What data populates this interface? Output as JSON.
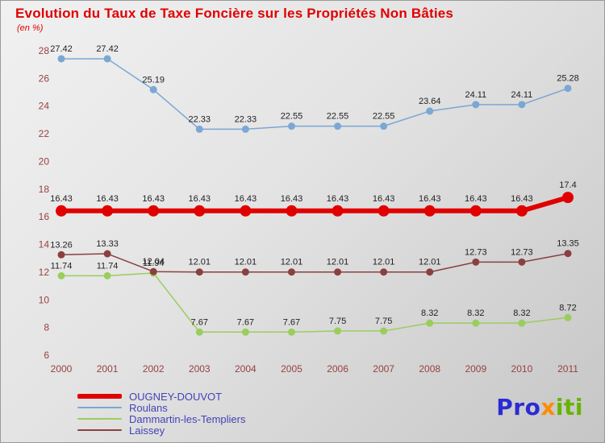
{
  "chart_data": {
    "type": "line",
    "title": "Evolution du Taux de Taxe Foncière sur les Propriétés Non Bâties",
    "subtitle": "(en %)",
    "x": [
      2000,
      2001,
      2002,
      2003,
      2004,
      2005,
      2006,
      2007,
      2008,
      2009,
      2010,
      2011
    ],
    "ylim": [
      6,
      28
    ],
    "ytick_step": 2,
    "grid": false,
    "legend_position": "bottom-left",
    "series": [
      {
        "name": "OUGNEY-DOUVOT",
        "color": "#e00000",
        "line_width": 6,
        "marker_radius": 7,
        "values": [
          16.43,
          16.43,
          16.43,
          16.43,
          16.43,
          16.43,
          16.43,
          16.43,
          16.43,
          16.43,
          16.43,
          17.4
        ]
      },
      {
        "name": "Roulans",
        "color": "#7ba7d4",
        "line_width": 1.5,
        "marker_radius": 4.5,
        "values": [
          27.42,
          27.42,
          25.19,
          22.33,
          22.33,
          22.55,
          22.55,
          22.55,
          23.64,
          24.11,
          24.11,
          25.28
        ]
      },
      {
        "name": "Dammartin-les-Templiers",
        "color": "#9acd5e",
        "line_width": 1.5,
        "marker_radius": 4.5,
        "values": [
          11.74,
          11.74,
          11.94,
          7.67,
          7.67,
          7.67,
          7.75,
          7.75,
          8.32,
          8.32,
          8.32,
          8.72
        ]
      },
      {
        "name": "Laissey",
        "color": "#8b4040",
        "line_width": 1.5,
        "marker_radius": 4.5,
        "values": [
          13.26,
          13.33,
          12.04,
          12.01,
          12.01,
          12.01,
          12.01,
          12.01,
          12.01,
          12.73,
          12.73,
          13.35
        ]
      }
    ]
  },
  "colors": {
    "title": "#e00000",
    "axis_labels": "#994040",
    "point_labels": "#222222",
    "legend_text": "#4343b8",
    "logo_pro": "#2b2bd5",
    "logo_x": "#ff8c00",
    "logo_iti": "#67b302",
    "background_top": "#f1f1f1",
    "background_bottom": "#c6c6c6"
  },
  "logo": {
    "pro": "Pro",
    "x": "x",
    "iti": "iti"
  }
}
